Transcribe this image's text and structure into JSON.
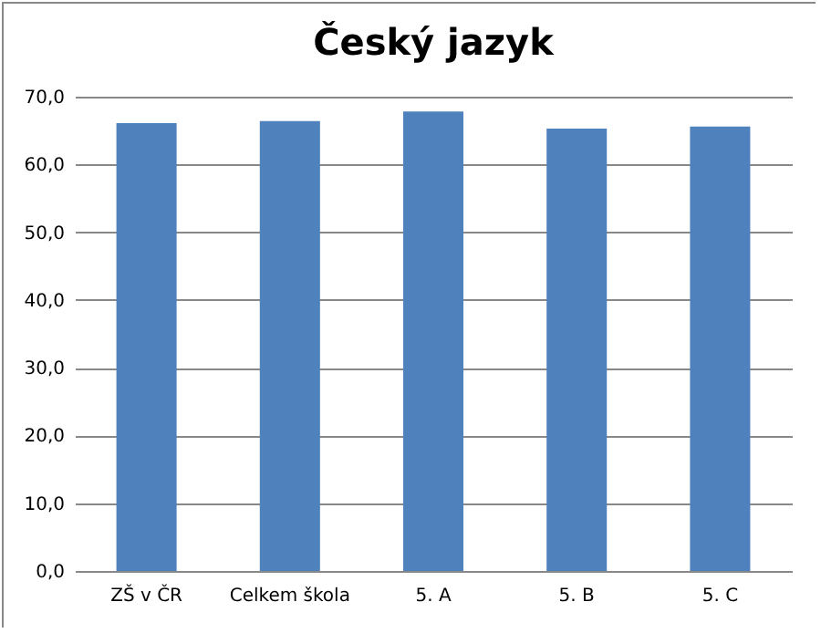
{
  "chart_data": {
    "type": "bar",
    "title": "Český jazyk",
    "categories": [
      "ZŠ v ČR",
      "Celkem škola",
      "5. A",
      "5. B",
      "5. C"
    ],
    "values": [
      66.1,
      66.4,
      67.8,
      65.3,
      65.6
    ],
    "color": "#4f81bd",
    "ylim": [
      0,
      70
    ],
    "yticks": [
      {
        "value": 0,
        "label": "0,0"
      },
      {
        "value": 10,
        "label": "10,0"
      },
      {
        "value": 20,
        "label": "20,0"
      },
      {
        "value": 30,
        "label": "30,0"
      },
      {
        "value": 40,
        "label": "40,0"
      },
      {
        "value": 50,
        "label": "50,0"
      },
      {
        "value": 60,
        "label": "60,0"
      },
      {
        "value": 70,
        "label": "70,0"
      }
    ],
    "grid": "y"
  }
}
